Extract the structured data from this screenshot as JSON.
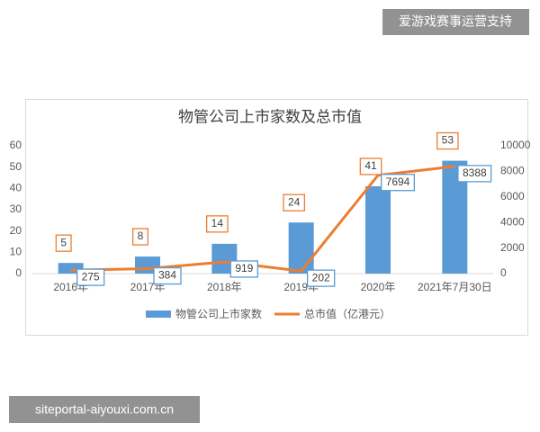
{
  "chart_data": {
    "type": "bar",
    "title": "物管公司上市家数及总市值",
    "categories": [
      "2016年",
      "2017年",
      "2018年",
      "2019年",
      "2020年",
      "2021年7月30日"
    ],
    "series": [
      {
        "name": "物管公司上市家数",
        "type": "bar",
        "color": "#5b9bd5",
        "label_border": "#ed7d31",
        "values": [
          5,
          8,
          14,
          24,
          41,
          53
        ]
      },
      {
        "name": "总市值（亿港元）",
        "type": "line",
        "axis": "y2",
        "color": "#ed7d31",
        "label_border": "#5b9bd5",
        "values": [
          275,
          384,
          919,
          202,
          7694,
          8388
        ]
      }
    ],
    "ylim": [
      0,
      60
    ],
    "yticks": [
      0,
      10,
      20,
      30,
      40,
      50,
      60
    ],
    "y2lim": [
      0,
      10000
    ],
    "y2ticks": [
      0,
      2000,
      4000,
      6000,
      8000,
      10000
    ],
    "grid": false,
    "legend": "bottom"
  },
  "watermarks": [
    "爱游戏赛事运营支持",
    "siteportal-aiyouxi.com.cn"
  ]
}
